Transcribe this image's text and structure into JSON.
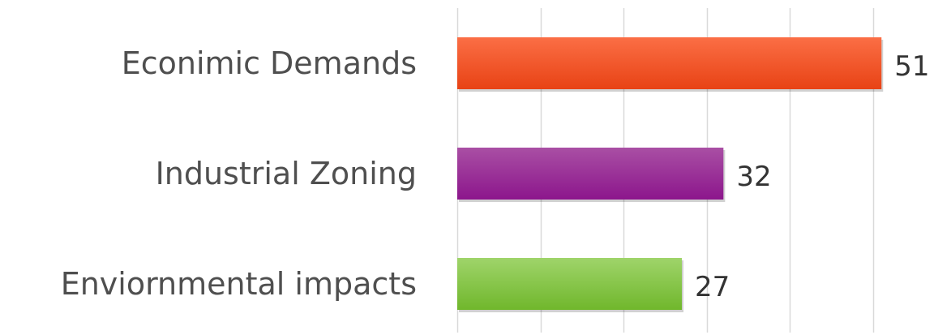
{
  "chart_data": {
    "type": "bar",
    "orientation": "horizontal",
    "categories": [
      "Econimic Demands",
      "Industrial Zoning",
      "Enviornmental impacts"
    ],
    "values": [
      51,
      32,
      27
    ],
    "value_labels": [
      "51",
      "32",
      "27"
    ],
    "xlim": [
      0,
      50
    ],
    "grid": true,
    "colors": {
      "Econimic Demands": [
        "#fb6e45",
        "#e84315"
      ],
      "Industrial Zoning": [
        "#a94fa4",
        "#8c168c"
      ],
      "Enviornmental impacts": [
        "#9fd46a",
        "#70b72c"
      ]
    }
  }
}
